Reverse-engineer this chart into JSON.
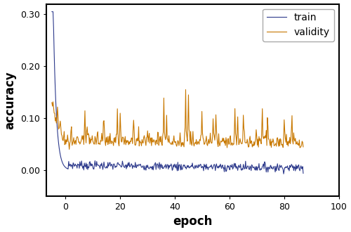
{
  "title": "",
  "xlabel": "epoch",
  "ylabel": "accuracy",
  "xlim": [
    -7,
    100
  ],
  "ylim": [
    -0.05,
    0.32
  ],
  "xticks": [
    0,
    20,
    40,
    60,
    80,
    100
  ],
  "yticks": [
    0.0,
    0.1,
    0.2,
    0.3
  ],
  "train_color": "#2d3a8c",
  "validity_color": "#c87800",
  "legend_labels": [
    "train",
    "validity"
  ],
  "figsize": [
    5.0,
    3.3
  ],
  "dpi": 100,
  "linewidth_train": 0.8,
  "linewidth_validity": 0.8,
  "legend_fontsize": 10,
  "axis_label_fontsize": 12,
  "tick_fontsize": 9,
  "bg_color": "#ffffff",
  "border_color": "#000000",
  "border_width": 1.5
}
